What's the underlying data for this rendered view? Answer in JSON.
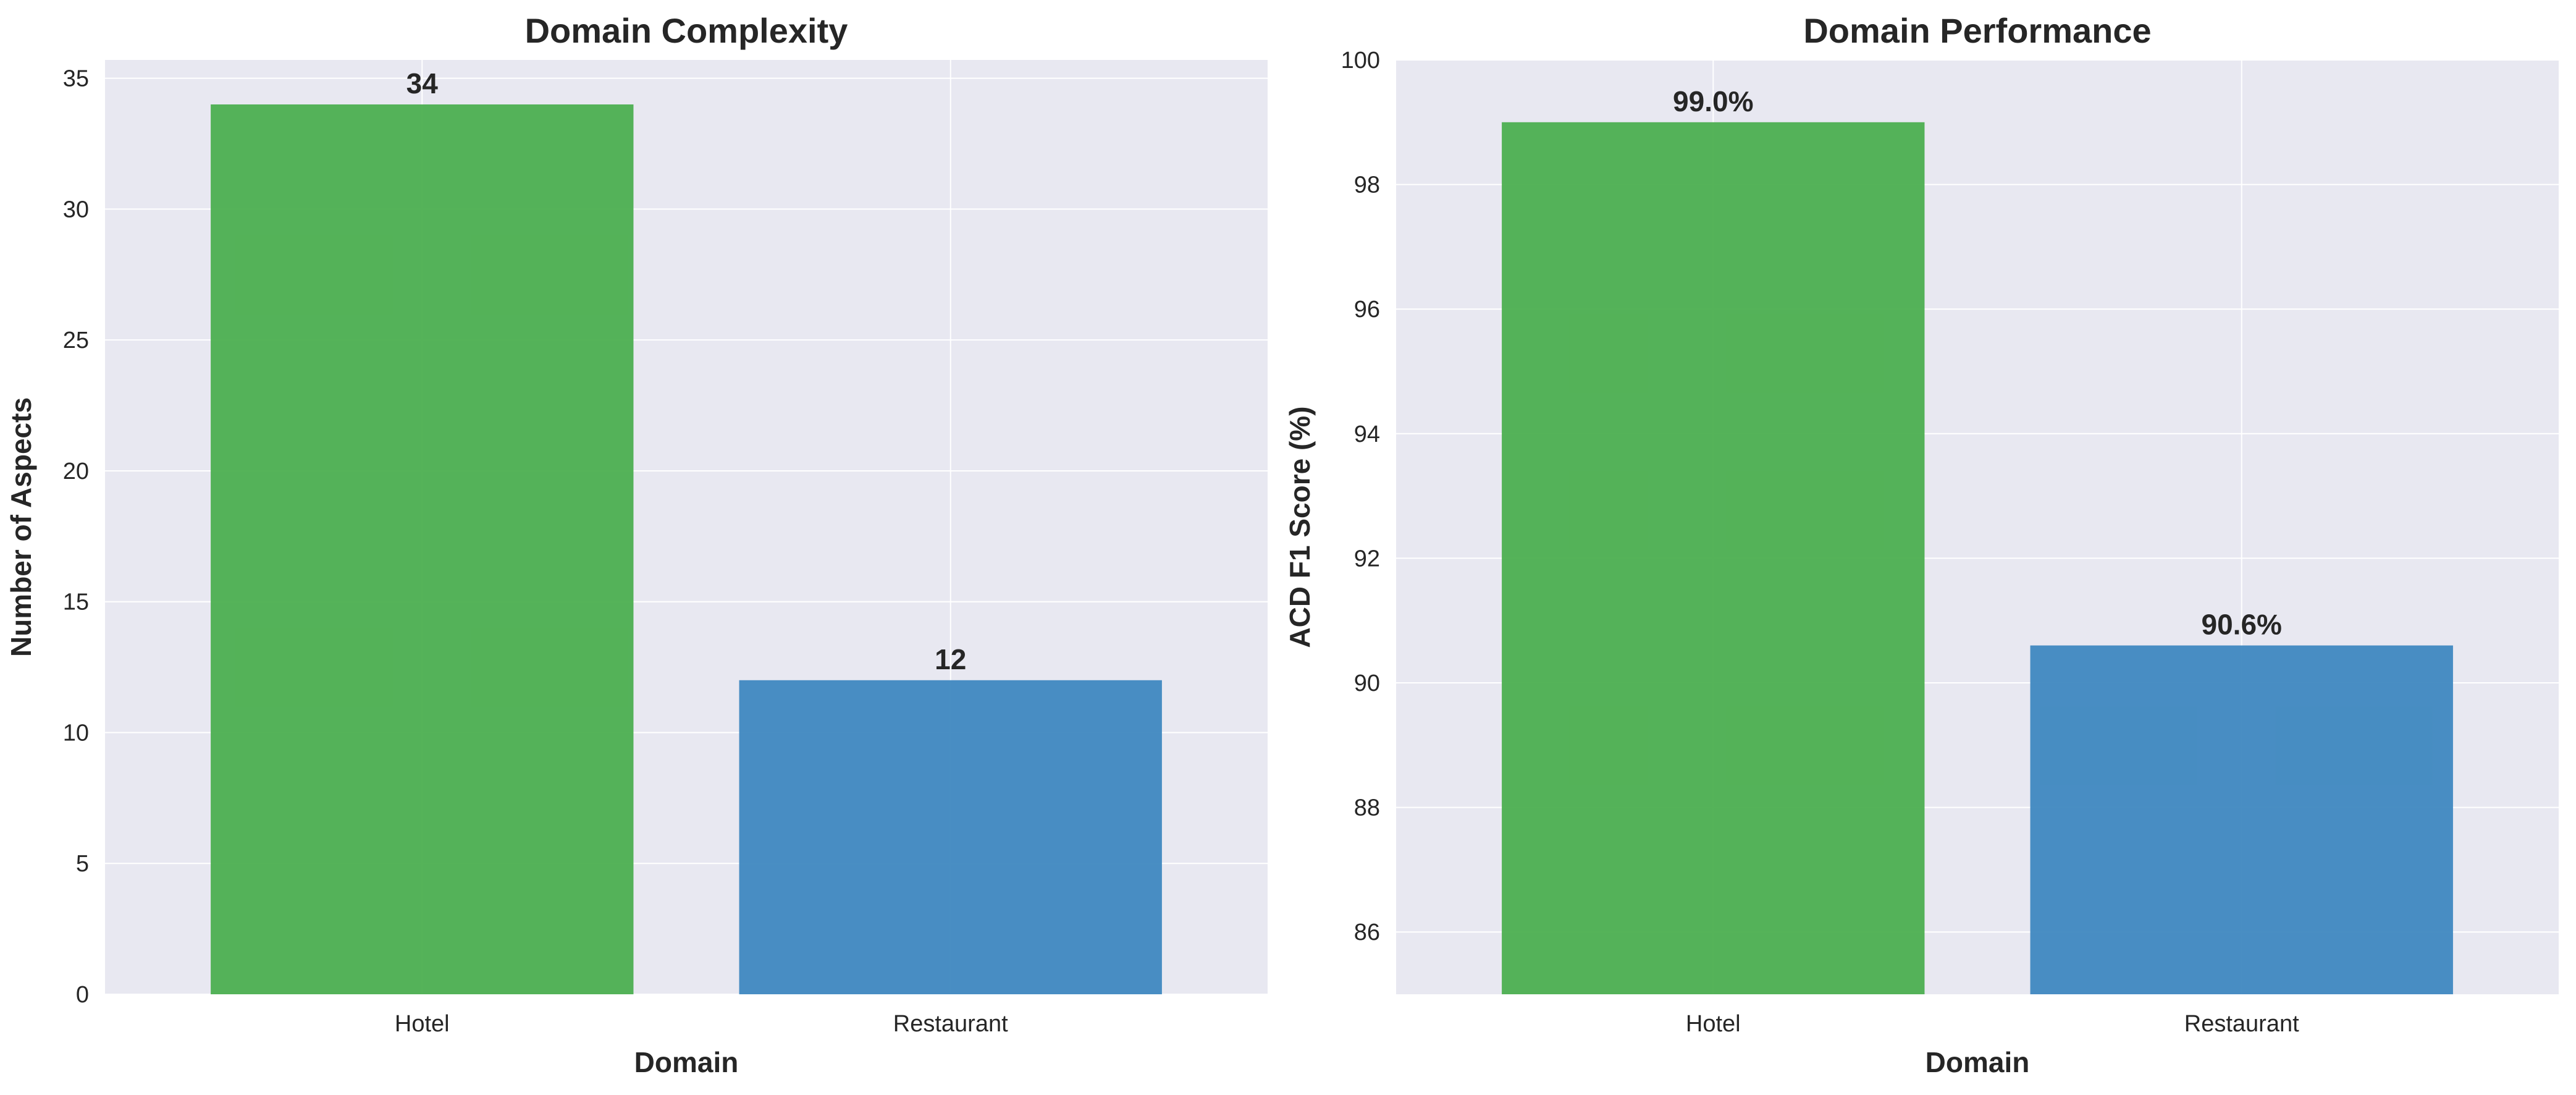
{
  "chart_data": [
    {
      "type": "bar",
      "title": "Domain Complexity",
      "xlabel": "Domain",
      "ylabel": "Number of Aspects",
      "categories": [
        "Hotel",
        "Restaurant"
      ],
      "values": [
        34,
        12
      ],
      "value_labels": [
        "34",
        "12"
      ],
      "colors": [
        "#4caf50",
        "#3f88c0"
      ],
      "ylim": [
        0,
        35.7
      ],
      "yticks": [
        0,
        5,
        10,
        15,
        20,
        25,
        30,
        35
      ],
      "grid": true
    },
    {
      "type": "bar",
      "title": "Domain Performance",
      "xlabel": "Domain",
      "ylabel": "ACD F1 Score (%)",
      "categories": [
        "Hotel",
        "Restaurant"
      ],
      "values": [
        99.0,
        90.6
      ],
      "value_labels": [
        "99.0%",
        "90.6%"
      ],
      "colors": [
        "#4caf50",
        "#3f88c0"
      ],
      "ylim": [
        85,
        100
      ],
      "yticks": [
        86,
        88,
        90,
        92,
        94,
        96,
        98,
        100
      ],
      "grid": true
    }
  ]
}
